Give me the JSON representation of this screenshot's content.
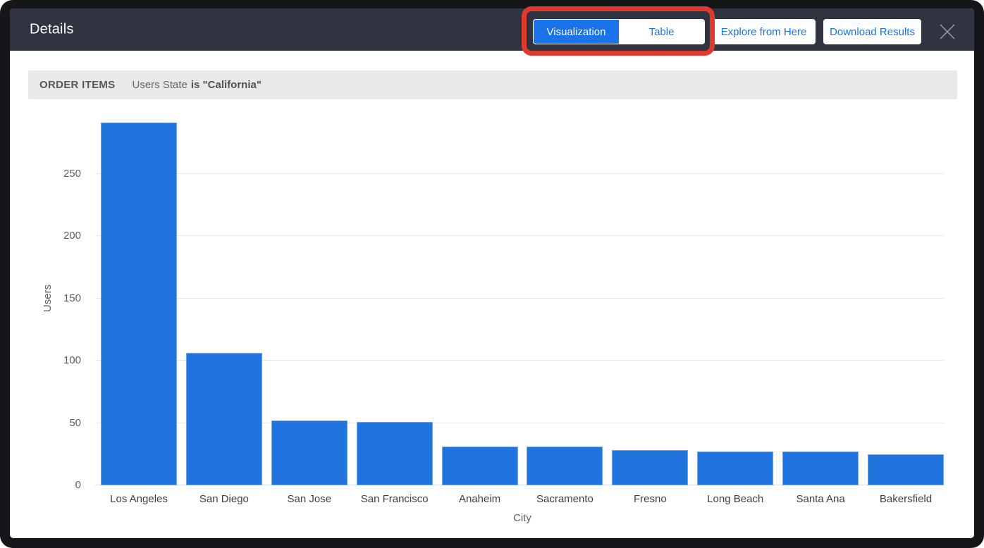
{
  "window": {
    "title": "Details"
  },
  "header": {
    "view_toggle": [
      {
        "label": "Visualization",
        "active": true
      },
      {
        "label": "Table",
        "active": false
      }
    ],
    "explore_button": "Explore from Here",
    "download_button": "Download Results",
    "close_icon": "x-close"
  },
  "filter_bar": {
    "source_label": "ORDER ITEMS",
    "filter_text": "Users State",
    "filter_value": "is \"California\""
  },
  "chart_data": {
    "type": "bar",
    "title": "",
    "categories": [
      "Los Angeles",
      "San Diego",
      "San Jose",
      "San Francisco",
      "Anaheim",
      "Sacramento",
      "Fresno",
      "Long Beach",
      "Santa Ana",
      "Bakersfield"
    ],
    "values": [
      291,
      106,
      52,
      51,
      31,
      31,
      28,
      27,
      27,
      25
    ],
    "xlabel": "City",
    "ylabel": "Users",
    "ylim": [
      0,
      300
    ],
    "yticks": [
      0,
      50,
      100,
      150,
      200,
      250
    ],
    "grid": true,
    "legend": "none",
    "bar_color": "#2173DE"
  },
  "colors": {
    "header_bg": "#2F3440",
    "accent_blue": "#1A73E8",
    "annotation_red": "#DF3A2B",
    "filter_bg": "#E8E9EA",
    "frame": "#141619",
    "gridline": "#E7E7E7"
  }
}
